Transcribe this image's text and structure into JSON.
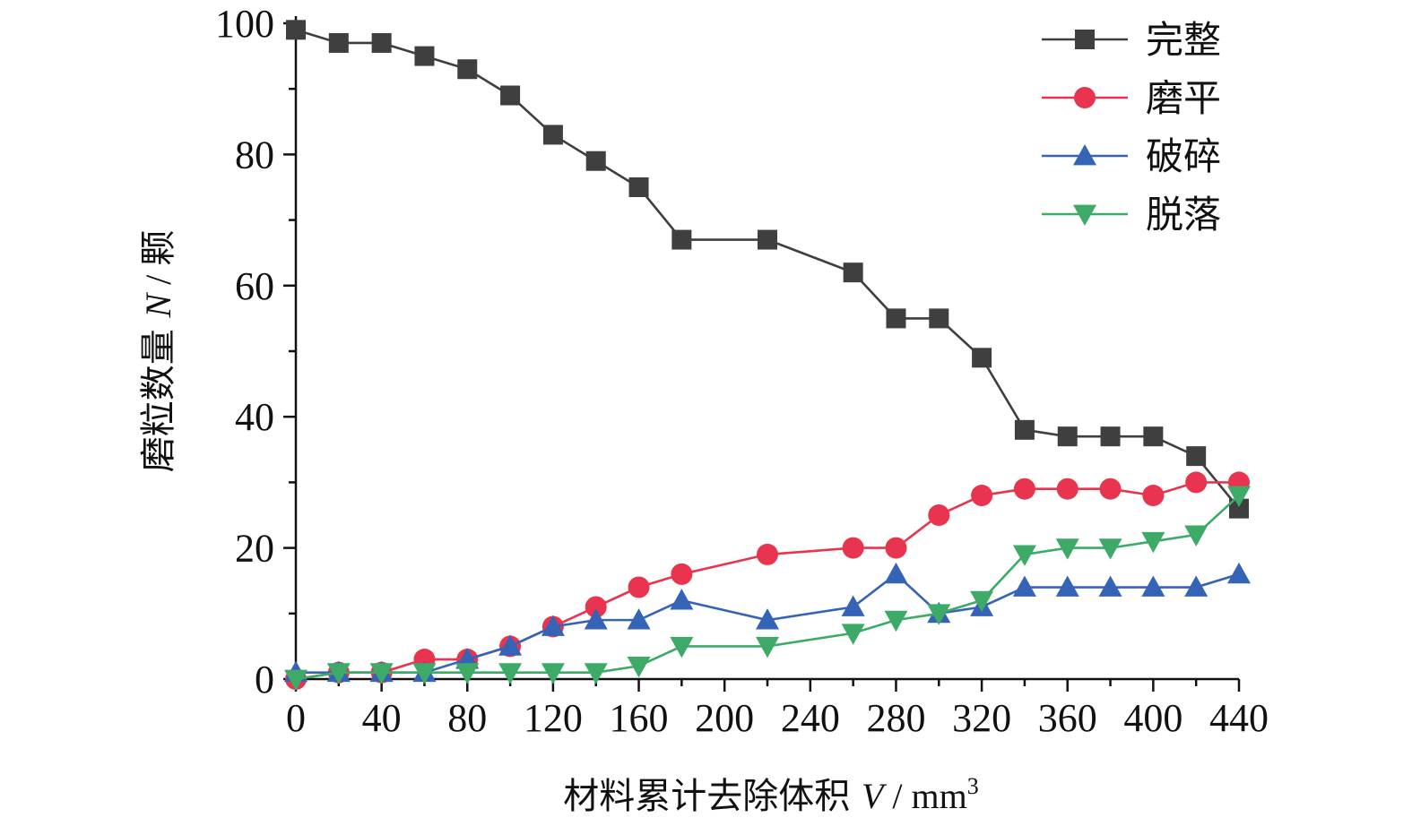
{
  "chart_data": {
    "type": "line",
    "title": "",
    "xlabel": "材料累计去除体积 V / mm³",
    "xlabel_parts": {
      "pre": "材料累计去除体积 ",
      "var": "V",
      "post": " / mm",
      "sup": "3"
    },
    "ylabel": "磨粒数量 N / 颗",
    "ylabel_parts": {
      "pre": "磨粒数量 ",
      "var": "N",
      "post": " / 颗"
    },
    "xlim": [
      0,
      440
    ],
    "ylim": [
      0,
      100
    ],
    "xticks": [
      0,
      40,
      80,
      120,
      160,
      200,
      240,
      280,
      320,
      360,
      400,
      440
    ],
    "yticks": [
      0,
      20,
      40,
      60,
      80,
      100
    ],
    "grid": false,
    "legend_position": "top-right",
    "series": [
      {
        "name": "完整",
        "color": "#3f3f3f",
        "marker": "square",
        "points": [
          [
            0,
            99
          ],
          [
            20,
            97
          ],
          [
            40,
            97
          ],
          [
            60,
            95
          ],
          [
            80,
            93
          ],
          [
            100,
            89
          ],
          [
            120,
            83
          ],
          [
            140,
            79
          ],
          [
            160,
            75
          ],
          [
            180,
            67
          ],
          [
            220,
            67
          ],
          [
            260,
            62
          ],
          [
            280,
            55
          ],
          [
            300,
            55
          ],
          [
            320,
            49
          ],
          [
            340,
            38
          ],
          [
            360,
            37
          ],
          [
            380,
            37
          ],
          [
            400,
            37
          ],
          [
            420,
            34
          ],
          [
            440,
            26
          ]
        ]
      },
      {
        "name": "磨平",
        "color": "#e8344e",
        "marker": "circle",
        "points": [
          [
            0,
            0
          ],
          [
            20,
            1
          ],
          [
            40,
            1
          ],
          [
            60,
            3
          ],
          [
            80,
            3
          ],
          [
            100,
            5
          ],
          [
            120,
            8
          ],
          [
            140,
            11
          ],
          [
            160,
            14
          ],
          [
            180,
            16
          ],
          [
            220,
            19
          ],
          [
            260,
            20
          ],
          [
            280,
            20
          ],
          [
            300,
            25
          ],
          [
            320,
            28
          ],
          [
            340,
            29
          ],
          [
            360,
            29
          ],
          [
            380,
            29
          ],
          [
            400,
            28
          ],
          [
            420,
            30
          ],
          [
            440,
            30
          ]
        ]
      },
      {
        "name": "破碎",
        "color": "#3563b5",
        "marker": "triangle-up",
        "points": [
          [
            0,
            1
          ],
          [
            20,
            1
          ],
          [
            40,
            1
          ],
          [
            60,
            1
          ],
          [
            80,
            3
          ],
          [
            100,
            5
          ],
          [
            120,
            8
          ],
          [
            140,
            9
          ],
          [
            160,
            9
          ],
          [
            180,
            12
          ],
          [
            220,
            9
          ],
          [
            260,
            11
          ],
          [
            280,
            16
          ],
          [
            300,
            10
          ],
          [
            320,
            11
          ],
          [
            340,
            14
          ],
          [
            360,
            14
          ],
          [
            380,
            14
          ],
          [
            400,
            14
          ],
          [
            420,
            14
          ],
          [
            440,
            16
          ]
        ]
      },
      {
        "name": "脱落",
        "color": "#3eaa68",
        "marker": "triangle-down",
        "points": [
          [
            0,
            0
          ],
          [
            20,
            1
          ],
          [
            40,
            1
          ],
          [
            60,
            1
          ],
          [
            80,
            1
          ],
          [
            100,
            1
          ],
          [
            120,
            1
          ],
          [
            140,
            1
          ],
          [
            160,
            2
          ],
          [
            180,
            5
          ],
          [
            220,
            5
          ],
          [
            260,
            7
          ],
          [
            280,
            9
          ],
          [
            300,
            10
          ],
          [
            320,
            12
          ],
          [
            340,
            19
          ],
          [
            360,
            20
          ],
          [
            380,
            20
          ],
          [
            400,
            21
          ],
          [
            420,
            22
          ],
          [
            440,
            28
          ]
        ]
      }
    ]
  }
}
